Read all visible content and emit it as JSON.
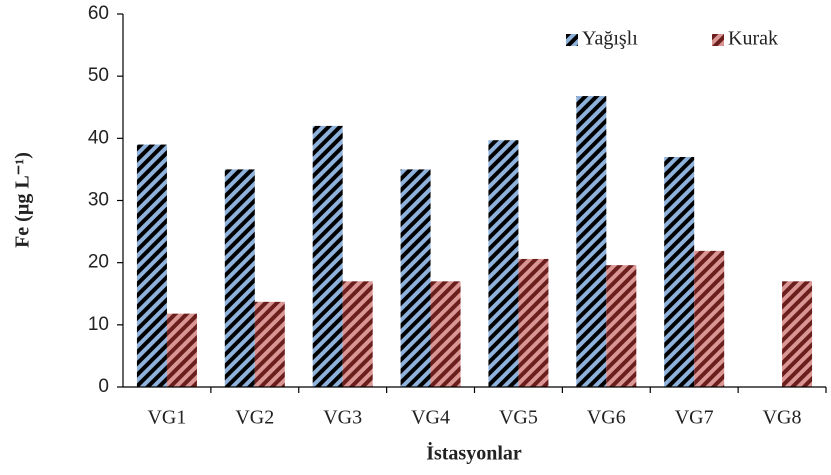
{
  "chart_data": {
    "type": "bar",
    "y_label": "Fe (µg L⁻¹)",
    "x_label": "İstasyonlar",
    "categories": [
      "VG1",
      "VG2",
      "VG3",
      "VG4",
      "VG5",
      "VG6",
      "VG7",
      "VG8"
    ],
    "series": [
      {
        "name": "Yağışlı",
        "color": "#8fb2dc",
        "values": [
          39,
          35,
          42,
          35,
          39.7,
          46.8,
          37,
          null
        ]
      },
      {
        "name": "Kurak",
        "color": "#d99694",
        "values": [
          11.8,
          13.7,
          17,
          17,
          20.6,
          19.6,
          21.9,
          17
        ]
      }
    ],
    "ylim": [
      0,
      60
    ],
    "yticks": [
      0,
      10,
      20,
      30,
      40,
      50,
      60
    ],
    "legend": "top-right"
  }
}
